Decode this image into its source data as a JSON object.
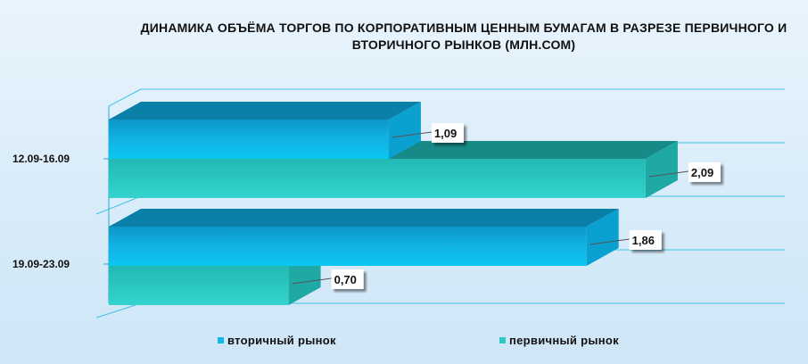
{
  "chart_data": {
    "type": "bar",
    "orientation": "horizontal",
    "title": "ДИНАМИКА ОБЪЁМА ТОРГОВ ПО КОРПОРАТИВНЫМ ЦЕННЫМ БУМАГАМ В РАЗРЕЗЕ ПЕРВИЧНОГО И ВТОРИЧНОГО РЫНКОВ  (МЛН.СОМ)",
    "categories": [
      "12.09-16.09",
      "19.09-23.09"
    ],
    "series": [
      {
        "name": "вторичный рынок",
        "values": [
          1.09,
          1.86
        ],
        "labels": [
          "1,09",
          "1,86"
        ],
        "color": "#14b8e8"
      },
      {
        "name": "первичный рынок",
        "values": [
          2.09,
          0.7
        ],
        "labels": [
          "2,09",
          "0,70"
        ],
        "color": "#2ec9c3"
      }
    ],
    "xlim": [
      0,
      2.4
    ],
    "grid": true,
    "legend_position": "bottom",
    "style": "3d"
  }
}
